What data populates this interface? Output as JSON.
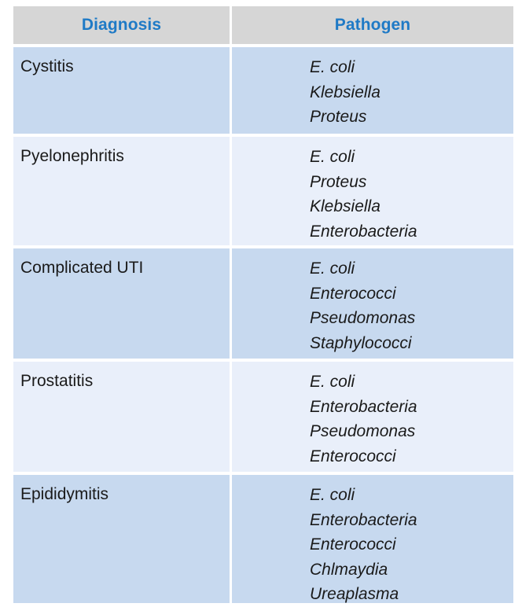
{
  "header": {
    "diagnosis_label": "Diagnosis",
    "pathogen_label": "Pathogen"
  },
  "colors": {
    "header_bg": "#d6d6d6",
    "header_text": "#1f7ac6",
    "row_dark": "#c7d9ef",
    "row_light": "#e9effa"
  },
  "rows": [
    {
      "diagnosis": "Cystitis",
      "pathogens": [
        "E. coli",
        "Klebsiella",
        "Proteus"
      ]
    },
    {
      "diagnosis": "Pyelonephritis",
      "pathogens": [
        "E. coli",
        "Proteus",
        "Klebsiella",
        "Enterobacteria"
      ]
    },
    {
      "diagnosis": "Complicated UTI",
      "pathogens": [
        "E. coli",
        "Enterococci",
        "Pseudomonas",
        "Staphylococci"
      ]
    },
    {
      "diagnosis": "Prostatitis",
      "pathogens": [
        "E. coli",
        "Enterobacteria",
        "Pseudomonas",
        "Enterococci"
      ]
    },
    {
      "diagnosis": "Epididymitis",
      "pathogens": [
        "E. coli",
        "Enterobacteria",
        "Enterococci",
        "Chlmaydia",
        "Ureaplasma"
      ]
    }
  ]
}
